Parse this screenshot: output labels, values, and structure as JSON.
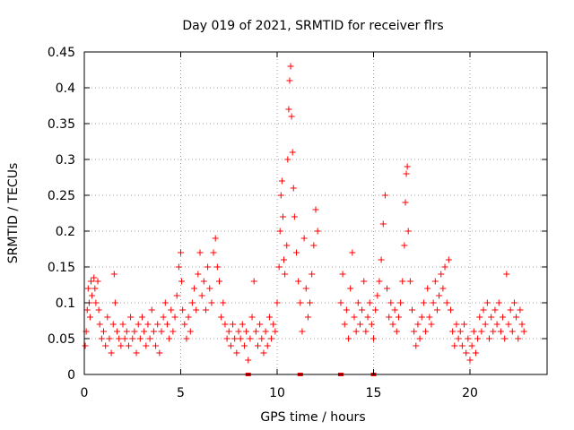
{
  "chart_data": {
    "type": "scatter",
    "title": "Day 019 of 2021, SRMTID for receiver flrs",
    "xlabel": "GPS time / hours",
    "ylabel": "SRMTID / TECUs",
    "xlim": [
      0,
      24
    ],
    "ylim": [
      0,
      0.45
    ],
    "xticks": [
      0,
      5,
      10,
      15,
      20
    ],
    "yticks": [
      0,
      0.05,
      0.1,
      0.15,
      0.2,
      0.25,
      0.3,
      0.35,
      0.4,
      0.45
    ],
    "xtick_labels": [
      "0",
      "5",
      "10",
      "15",
      "20"
    ],
    "ytick_labels": [
      "0",
      "0.05",
      "0.1",
      "0.15",
      "0.2",
      "0.25",
      "0.3",
      "0.35",
      "0.4",
      "0.45"
    ],
    "grid": true,
    "marker": "+",
    "color": "#ff0000",
    "points": [
      [
        0.05,
        0.04
      ],
      [
        0.1,
        0.06
      ],
      [
        0.15,
        0.09
      ],
      [
        0.2,
        0.12
      ],
      [
        0.25,
        0.1
      ],
      [
        0.3,
        0.08
      ],
      [
        0.35,
        0.13
      ],
      [
        0.4,
        0.11
      ],
      [
        0.5,
        0.135
      ],
      [
        0.55,
        0.12
      ],
      [
        0.6,
        0.1
      ],
      [
        0.7,
        0.13
      ],
      [
        0.75,
        0.09
      ],
      [
        0.8,
        0.07
      ],
      [
        0.9,
        0.05
      ],
      [
        1.0,
        0.06
      ],
      [
        1.1,
        0.04
      ],
      [
        1.2,
        0.08
      ],
      [
        1.3,
        0.05
      ],
      [
        1.4,
        0.03
      ],
      [
        1.5,
        0.07
      ],
      [
        1.55,
        0.14
      ],
      [
        1.6,
        0.1
      ],
      [
        1.7,
        0.06
      ],
      [
        1.8,
        0.05
      ],
      [
        1.9,
        0.04
      ],
      [
        2.0,
        0.07
      ],
      [
        2.1,
        0.05
      ],
      [
        2.2,
        0.06
      ],
      [
        2.3,
        0.04
      ],
      [
        2.4,
        0.08
      ],
      [
        2.5,
        0.05
      ],
      [
        2.6,
        0.06
      ],
      [
        2.7,
        0.03
      ],
      [
        2.8,
        0.07
      ],
      [
        2.9,
        0.05
      ],
      [
        3.0,
        0.08
      ],
      [
        3.1,
        0.06
      ],
      [
        3.2,
        0.04
      ],
      [
        3.3,
        0.07
      ],
      [
        3.4,
        0.05
      ],
      [
        3.5,
        0.09
      ],
      [
        3.6,
        0.06
      ],
      [
        3.7,
        0.04
      ],
      [
        3.8,
        0.07
      ],
      [
        3.9,
        0.03
      ],
      [
        4.0,
        0.06
      ],
      [
        4.1,
        0.08
      ],
      [
        4.2,
        0.1
      ],
      [
        4.3,
        0.07
      ],
      [
        4.4,
        0.05
      ],
      [
        4.5,
        0.09
      ],
      [
        4.6,
        0.06
      ],
      [
        4.7,
        0.08
      ],
      [
        4.8,
        0.11
      ],
      [
        4.9,
        0.15
      ],
      [
        5.0,
        0.17
      ],
      [
        5.05,
        0.13
      ],
      [
        5.1,
        0.09
      ],
      [
        5.2,
        0.07
      ],
      [
        5.3,
        0.05
      ],
      [
        5.4,
        0.08
      ],
      [
        5.5,
        0.06
      ],
      [
        5.6,
        0.1
      ],
      [
        5.7,
        0.12
      ],
      [
        5.8,
        0.09
      ],
      [
        5.9,
        0.14
      ],
      [
        6.0,
        0.17
      ],
      [
        6.1,
        0.11
      ],
      [
        6.2,
        0.13
      ],
      [
        6.3,
        0.09
      ],
      [
        6.4,
        0.15
      ],
      [
        6.5,
        0.12
      ],
      [
        6.6,
        0.1
      ],
      [
        6.7,
        0.17
      ],
      [
        6.8,
        0.19
      ],
      [
        6.9,
        0.15
      ],
      [
        7.0,
        0.13
      ],
      [
        7.1,
        0.08
      ],
      [
        7.2,
        0.1
      ],
      [
        7.3,
        0.07
      ],
      [
        7.4,
        0.05
      ],
      [
        7.5,
        0.06
      ],
      [
        7.6,
        0.04
      ],
      [
        7.7,
        0.07
      ],
      [
        7.8,
        0.05
      ],
      [
        7.9,
        0.03
      ],
      [
        8.0,
        0.06
      ],
      [
        8.1,
        0.05
      ],
      [
        8.2,
        0.07
      ],
      [
        8.3,
        0.04
      ],
      [
        8.4,
        0.06
      ],
      [
        8.5,
        0.02
      ],
      [
        8.6,
        0.05
      ],
      [
        8.7,
        0.08
      ],
      [
        8.8,
        0.13
      ],
      [
        8.9,
        0.06
      ],
      [
        9.0,
        0.04
      ],
      [
        9.1,
        0.07
      ],
      [
        9.2,
        0.05
      ],
      [
        9.3,
        0.03
      ],
      [
        9.4,
        0.06
      ],
      [
        9.5,
        0.04
      ],
      [
        9.6,
        0.08
      ],
      [
        9.7,
        0.05
      ],
      [
        9.8,
        0.07
      ],
      [
        9.9,
        0.06
      ],
      [
        10.0,
        0.1
      ],
      [
        10.1,
        0.15
      ],
      [
        10.15,
        0.2
      ],
      [
        10.2,
        0.25
      ],
      [
        10.25,
        0.27
      ],
      [
        10.3,
        0.22
      ],
      [
        10.35,
        0.16
      ],
      [
        10.4,
        0.14
      ],
      [
        10.5,
        0.18
      ],
      [
        10.55,
        0.3
      ],
      [
        10.6,
        0.37
      ],
      [
        10.65,
        0.41
      ],
      [
        10.7,
        0.43
      ],
      [
        10.75,
        0.36
      ],
      [
        10.8,
        0.31
      ],
      [
        10.85,
        0.26
      ],
      [
        10.9,
        0.22
      ],
      [
        11.0,
        0.17
      ],
      [
        11.1,
        0.13
      ],
      [
        11.2,
        0.1
      ],
      [
        11.3,
        0.06
      ],
      [
        11.4,
        0.19
      ],
      [
        11.5,
        0.12
      ],
      [
        11.6,
        0.08
      ],
      [
        11.7,
        0.1
      ],
      [
        11.8,
        0.14
      ],
      [
        11.9,
        0.18
      ],
      [
        12.0,
        0.23
      ],
      [
        12.1,
        0.2
      ],
      [
        13.3,
        0.1
      ],
      [
        13.4,
        0.14
      ],
      [
        13.5,
        0.07
      ],
      [
        13.6,
        0.09
      ],
      [
        13.7,
        0.05
      ],
      [
        13.8,
        0.12
      ],
      [
        13.9,
        0.17
      ],
      [
        14.0,
        0.08
      ],
      [
        14.1,
        0.06
      ],
      [
        14.2,
        0.1
      ],
      [
        14.3,
        0.07
      ],
      [
        14.4,
        0.09
      ],
      [
        14.5,
        0.13
      ],
      [
        14.6,
        0.06
      ],
      [
        14.7,
        0.08
      ],
      [
        14.8,
        0.1
      ],
      [
        14.9,
        0.07
      ],
      [
        15.0,
        0.05
      ],
      [
        15.1,
        0.09
      ],
      [
        15.2,
        0.11
      ],
      [
        15.3,
        0.13
      ],
      [
        15.4,
        0.16
      ],
      [
        15.5,
        0.21
      ],
      [
        15.6,
        0.25
      ],
      [
        15.7,
        0.12
      ],
      [
        15.8,
        0.08
      ],
      [
        15.9,
        0.1
      ],
      [
        16.0,
        0.07
      ],
      [
        16.1,
        0.09
      ],
      [
        16.2,
        0.06
      ],
      [
        16.3,
        0.08
      ],
      [
        16.4,
        0.1
      ],
      [
        16.5,
        0.13
      ],
      [
        16.6,
        0.18
      ],
      [
        16.65,
        0.24
      ],
      [
        16.7,
        0.28
      ],
      [
        16.75,
        0.29
      ],
      [
        16.8,
        0.2
      ],
      [
        16.9,
        0.13
      ],
      [
        17.0,
        0.09
      ],
      [
        17.1,
        0.06
      ],
      [
        17.2,
        0.04
      ],
      [
        17.3,
        0.07
      ],
      [
        17.4,
        0.05
      ],
      [
        17.5,
        0.08
      ],
      [
        17.6,
        0.1
      ],
      [
        17.7,
        0.06
      ],
      [
        17.8,
        0.12
      ],
      [
        17.9,
        0.08
      ],
      [
        18.0,
        0.07
      ],
      [
        18.1,
        0.1
      ],
      [
        18.2,
        0.13
      ],
      [
        18.3,
        0.09
      ],
      [
        18.4,
        0.11
      ],
      [
        18.5,
        0.14
      ],
      [
        18.6,
        0.12
      ],
      [
        18.7,
        0.15
      ],
      [
        18.8,
        0.1
      ],
      [
        18.9,
        0.16
      ],
      [
        19.0,
        0.09
      ],
      [
        19.1,
        0.06
      ],
      [
        19.2,
        0.04
      ],
      [
        19.3,
        0.07
      ],
      [
        19.4,
        0.05
      ],
      [
        19.5,
        0.06
      ],
      [
        19.6,
        0.04
      ],
      [
        19.7,
        0.07
      ],
      [
        19.8,
        0.03
      ],
      [
        19.9,
        0.05
      ],
      [
        20.0,
        0.02
      ],
      [
        20.1,
        0.04
      ],
      [
        20.2,
        0.06
      ],
      [
        20.3,
        0.03
      ],
      [
        20.4,
        0.05
      ],
      [
        20.5,
        0.08
      ],
      [
        20.6,
        0.06
      ],
      [
        20.7,
        0.09
      ],
      [
        20.8,
        0.07
      ],
      [
        20.9,
        0.1
      ],
      [
        21.0,
        0.05
      ],
      [
        21.1,
        0.08
      ],
      [
        21.2,
        0.06
      ],
      [
        21.3,
        0.09
      ],
      [
        21.4,
        0.07
      ],
      [
        21.5,
        0.1
      ],
      [
        21.6,
        0.06
      ],
      [
        21.7,
        0.08
      ],
      [
        21.8,
        0.05
      ],
      [
        21.9,
        0.14
      ],
      [
        22.0,
        0.07
      ],
      [
        22.1,
        0.09
      ],
      [
        22.2,
        0.06
      ],
      [
        22.3,
        0.1
      ],
      [
        22.4,
        0.08
      ],
      [
        22.5,
        0.05
      ],
      [
        22.6,
        0.09
      ],
      [
        22.7,
        0.07
      ],
      [
        22.8,
        0.06
      ]
    ],
    "zero_points": [
      8.5,
      11.2,
      13.3,
      15.0
    ]
  }
}
